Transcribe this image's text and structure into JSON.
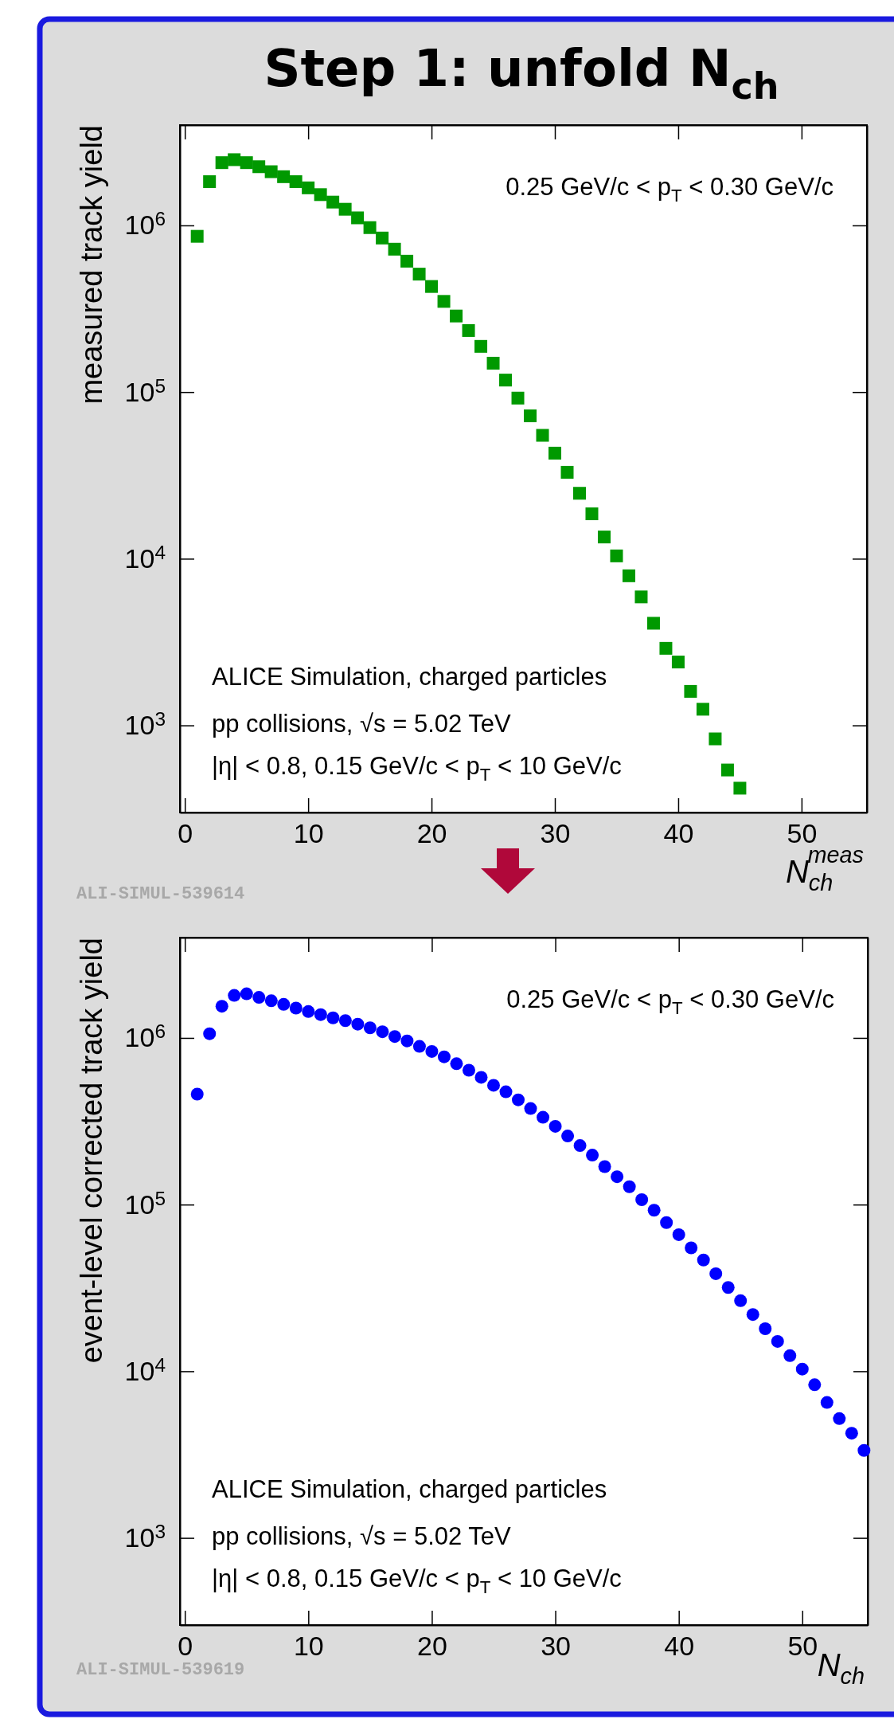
{
  "chart_data": [
    {
      "type": "scatter",
      "title": "Step 1: unfold N$_{ch}$",
      "xlabel": "N$_{ch}$$^{meas}$",
      "ylabel": "measured track yield",
      "marker": "square",
      "log": true,
      "grid": false,
      "x": [
        1,
        2,
        3,
        4,
        5,
        6,
        7,
        8,
        9,
        10,
        11,
        12,
        13,
        14,
        15,
        16,
        17,
        18,
        19,
        20,
        21,
        22,
        23,
        24,
        25,
        26,
        27,
        28,
        29,
        30,
        31,
        32,
        33,
        34,
        35,
        36,
        37,
        38,
        39,
        40,
        41,
        42,
        43,
        44,
        45
      ],
      "series": [
        {
          "color": "#009900",
          "values": [
            860000,
            1830000,
            2380000,
            2480000,
            2380000,
            2250000,
            2100000,
            1960000,
            1830000,
            1680000,
            1530000,
            1380000,
            1250000,
            1110000,
            970000,
            840000,
            720000,
            610000,
            510000,
            430000,
            350000,
            286000,
            234000,
            188000,
            149000,
            118000,
            92000,
            72000,
            55000,
            43000,
            33000,
            24700,
            18600,
            13500,
            10400,
            7900,
            5900,
            4100,
            2900,
            2400,
            1600,
            1250,
            830,
            540,
            420
          ]
        }
      ],
      "xlim": [
        -0.4,
        55.3
      ],
      "xticks": [
        0,
        10,
        20,
        30,
        40,
        50
      ],
      "ylim": [
        300,
        4000000
      ],
      "yticks": [
        {
          "value": 1000,
          "label": "10$^{3}$"
        },
        {
          "value": 10000,
          "label": "10$^{4}$"
        },
        {
          "value": 100000,
          "label": "10$^{5}$"
        },
        {
          "value": 1000000,
          "label": "10$^{6}$"
        }
      ],
      "annotations": [
        "0.25 GeV/c < p$_{T}$ < 0.30 GeV/c",
        "ALICE Simulation, charged particles",
        "pp collisions, √s = 5.02 TeV",
        "|η| < 0.8, 0.15 GeV/c < p$_{T}$ < 10 GeV/c",
        "ALI-SIMUL-539614"
      ]
    },
    {
      "type": "scatter",
      "xlabel": "N$_{ch}$",
      "ylabel": "event-level corrected track yield",
      "marker": "circle",
      "log": true,
      "grid": false,
      "x": [
        1,
        2,
        3,
        4,
        5,
        6,
        7,
        8,
        9,
        10,
        11,
        12,
        13,
        14,
        15,
        16,
        17,
        18,
        19,
        20,
        21,
        22,
        23,
        24,
        25,
        26,
        27,
        28,
        29,
        30,
        31,
        32,
        33,
        34,
        35,
        36,
        37,
        38,
        39,
        40,
        41,
        42,
        43,
        44,
        45,
        46,
        47,
        48,
        49,
        50,
        51,
        52,
        53,
        54,
        55
      ],
      "series": [
        {
          "color": "#0000ff",
          "values": [
            460000,
            1060000,
            1550000,
            1800000,
            1840000,
            1750000,
            1670000,
            1590000,
            1510000,
            1440000,
            1380000,
            1320000,
            1270000,
            1210000,
            1150000,
            1090000,
            1020000,
            960000,
            890000,
            830000,
            770000,
            700000,
            640000,
            580000,
            520000,
            475000,
            425000,
            377000,
            334000,
            295000,
            258000,
            226000,
            198000,
            169000,
            147000,
            128000,
            107000,
            92500,
            78000,
            66000,
            55000,
            46500,
            38500,
            31800,
            26500,
            21900,
            18000,
            15100,
            12400,
            10300,
            8300,
            6500,
            5200,
            4250,
            3350
          ]
        }
      ],
      "xlim": [
        -0.4,
        55.3
      ],
      "xticks": [
        0,
        10,
        20,
        30,
        40,
        50
      ],
      "ylim": [
        300,
        4000000
      ],
      "yticks": [
        {
          "value": 1000,
          "label": "10$^{3}$"
        },
        {
          "value": 10000,
          "label": "10$^{4}$"
        },
        {
          "value": 100000,
          "label": "10$^{5}$"
        },
        {
          "value": 1000000,
          "label": "10$^{6}$"
        }
      ],
      "annotations": [
        "0.25 GeV/c < p$_{T}$ < 0.30 GeV/c",
        "ALICE Simulation, charged particles",
        "pp collisions, √s = 5.02 TeV",
        "|η| < 0.8, 0.15 GeV/c < p$_{T}$ < 10 GeV/c",
        "ALI-SIMUL-539619"
      ]
    }
  ]
}
